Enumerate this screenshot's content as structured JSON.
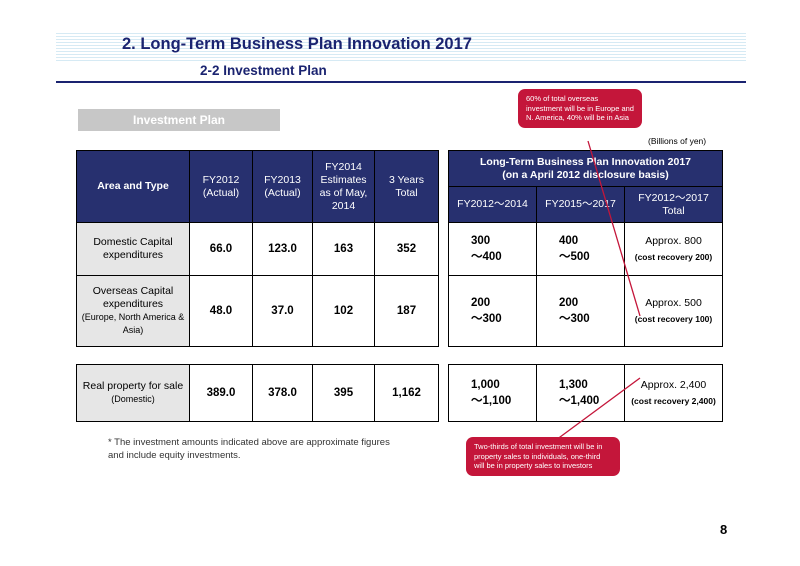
{
  "header": {
    "title": "2. Long-Term Business Plan Innovation 2017",
    "subtitle": "2-2 Investment Plan"
  },
  "section_label": "Investment Plan",
  "units": "(Billions of yen)",
  "left_table": {
    "headers": [
      "Area and Type",
      "FY2012 (Actual)",
      "FY2013 (Actual)",
      "FY2014 Estimates as of May, 2014",
      "3 Years Total"
    ],
    "rows": [
      {
        "label": "Domestic Capital expenditures",
        "note": "",
        "values": [
          "66.0",
          "123.0",
          "163",
          "352"
        ]
      },
      {
        "label": "Overseas Capital expenditures",
        "note": "(Europe, North America & Asia)",
        "values": [
          "48.0",
          "37.0",
          "102",
          "187"
        ]
      }
    ],
    "real_property": {
      "label": "Real property for sale",
      "note": "(Domestic)",
      "values": [
        "389.0",
        "378.0",
        "395",
        "1,162"
      ]
    }
  },
  "right_table": {
    "title_line1": "Long-Term Business Plan Innovation 2017",
    "title_line2": "(on a April 2012 disclosure basis)",
    "headers": [
      "FY2012～2014",
      "FY2015～2017",
      "FY2012～2017 Total"
    ],
    "rows": [
      {
        "a": [
          "300",
          "～400"
        ],
        "b": [
          "400",
          "～500"
        ],
        "total": "Approx. 800",
        "recovery": "(cost recovery 200)"
      },
      {
        "a": [
          "200",
          "～300"
        ],
        "b": [
          "200",
          "～300"
        ],
        "total": "Approx. 500",
        "recovery": "(cost recovery 100)"
      }
    ],
    "real_property": {
      "a": [
        "1,000",
        "～1,100"
      ],
      "b": [
        "1,300",
        "～1,400"
      ],
      "total": "Approx. 2,400",
      "recovery": "(cost recovery 2,400)"
    }
  },
  "footnote": "* The investment amounts indicated above are approximate figures and include equity investments.",
  "callouts": {
    "top": "60% of total overseas investment will be in Europe and N. America, 40% will be in Asia",
    "bottom": "Two-thirds of total investment will be in property sales to individuals, one-third will be in property sales to investors"
  },
  "colors": {
    "header_text": "#1a2370",
    "table_header_bg": "#27306f",
    "callout_bg": "#c4163a",
    "row_label_bg": "#e6e6e6"
  },
  "page_number": "8"
}
